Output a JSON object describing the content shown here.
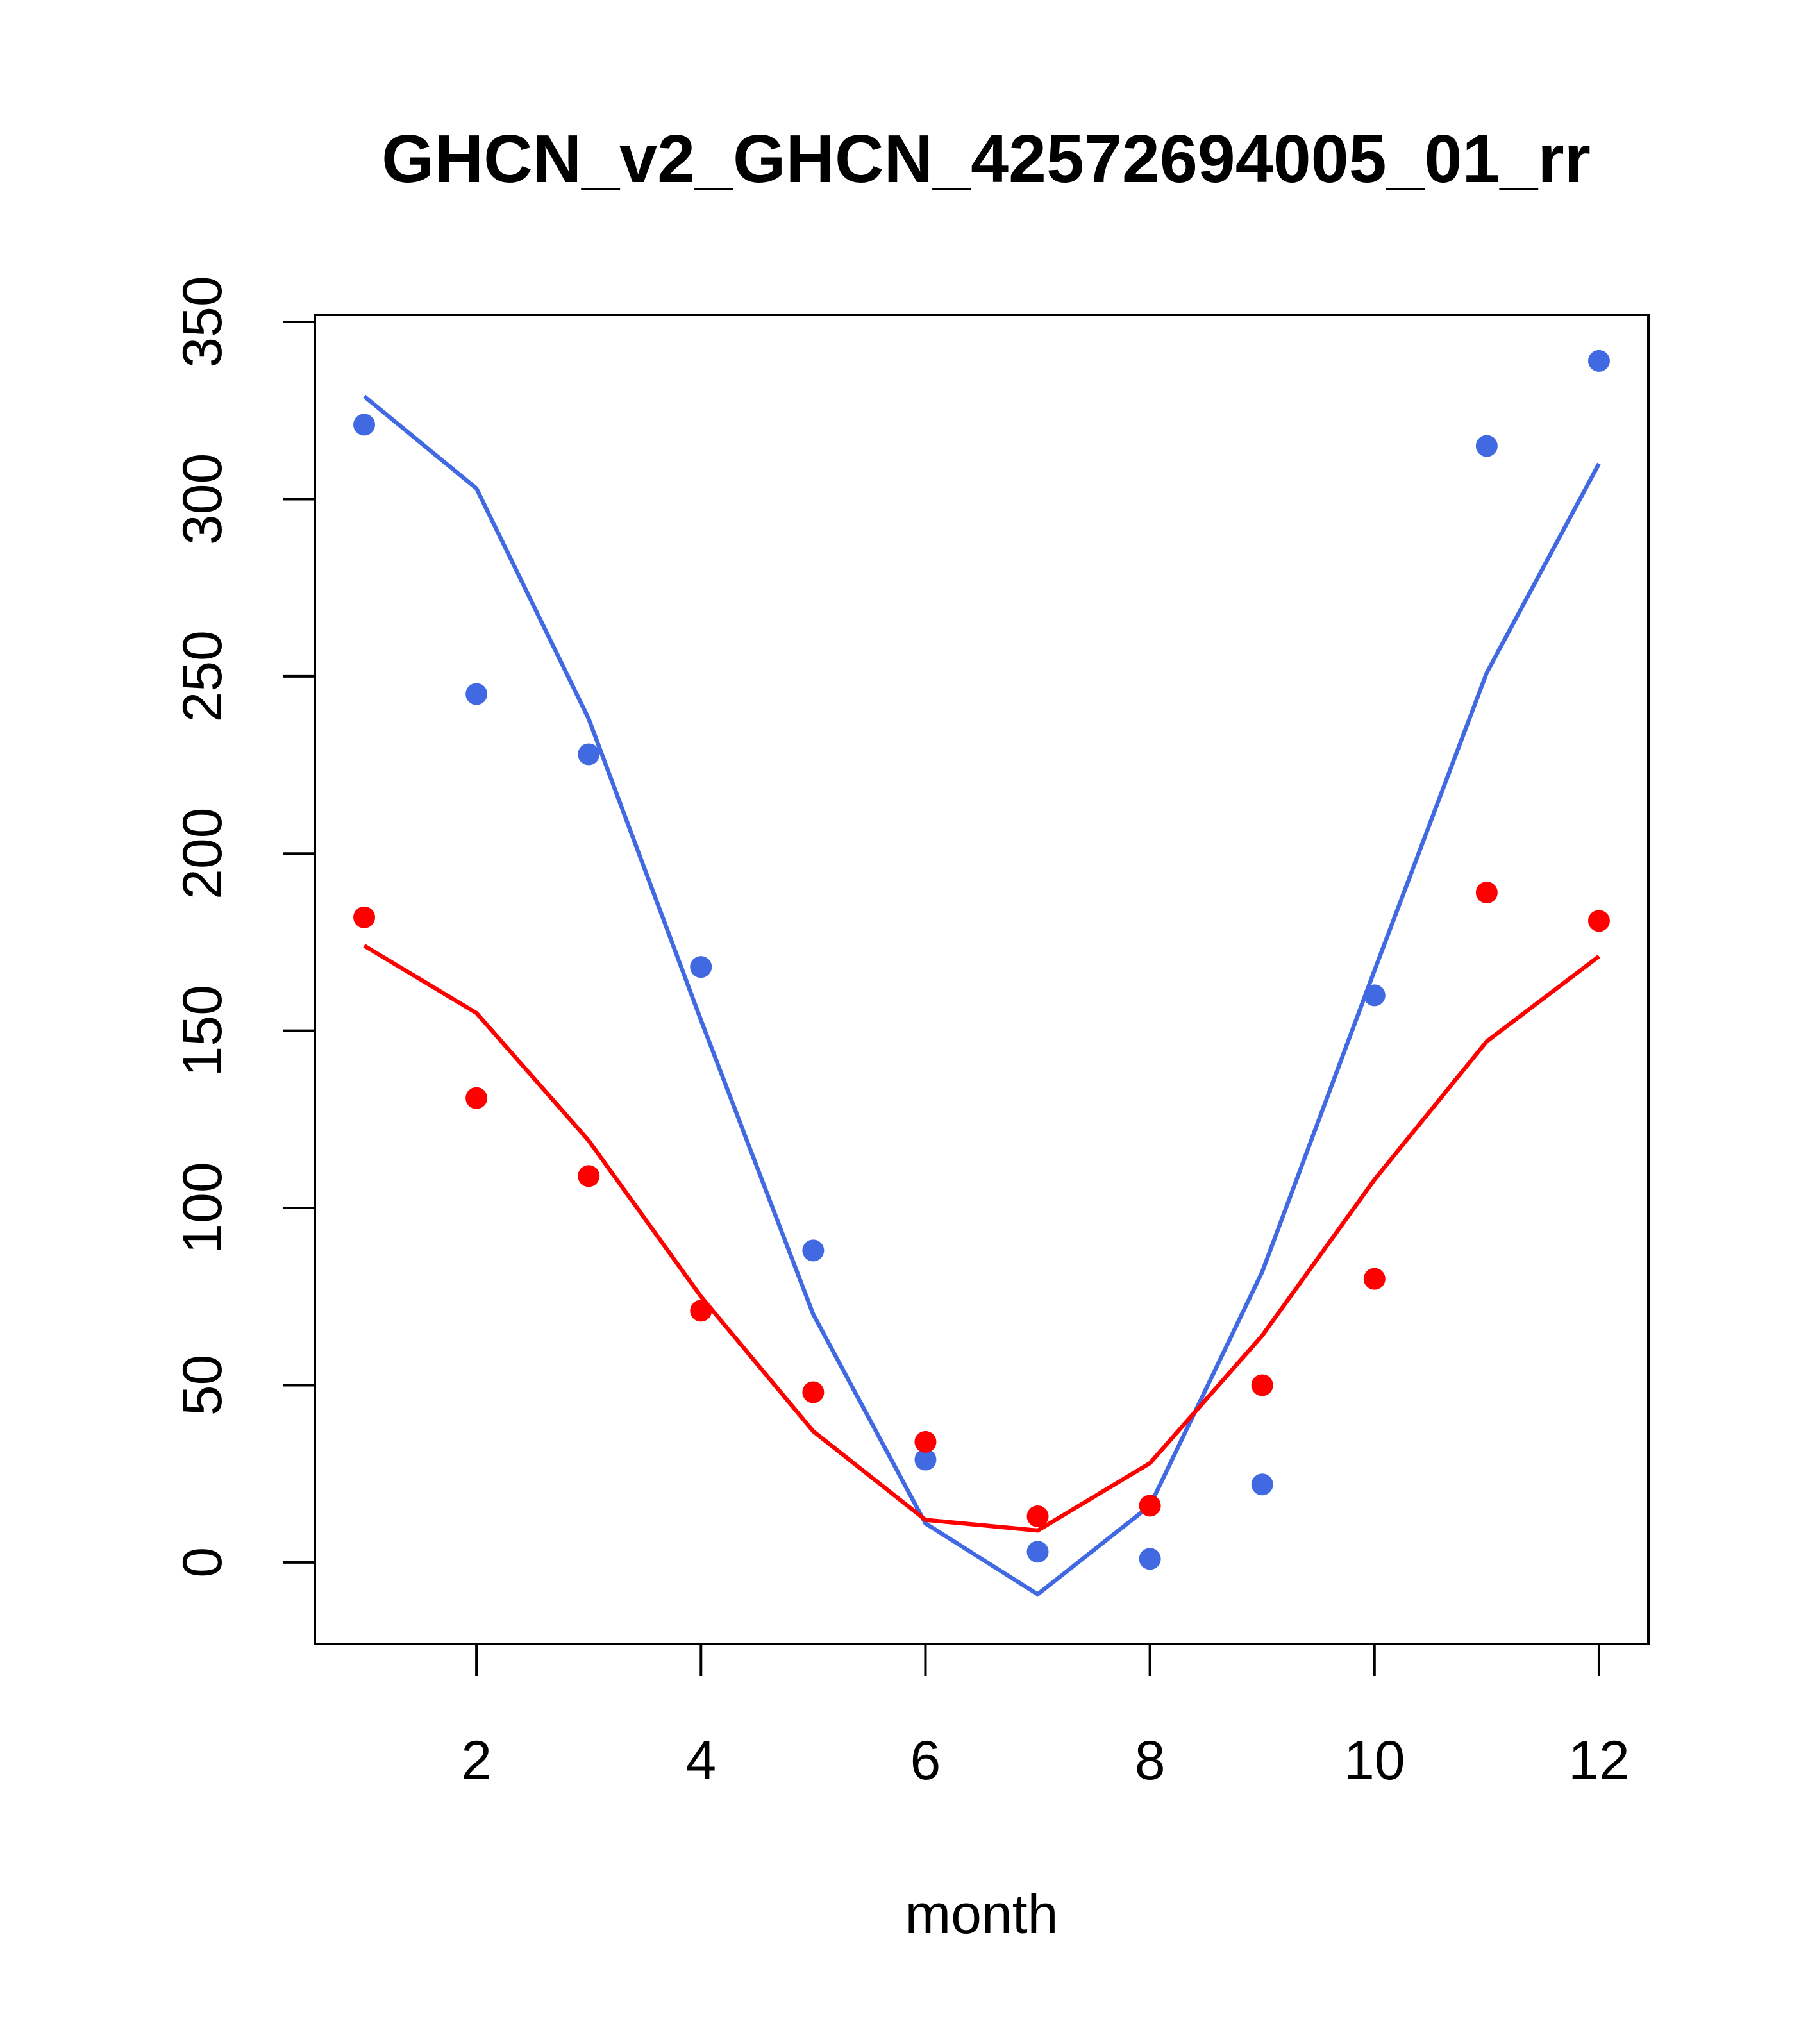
{
  "chart_data": {
    "type": "line",
    "title": "GHCN_v2_GHCN_42572694005_01_rr",
    "xlabel": "month",
    "ylabel": "",
    "xlim": [
      0.56,
      12.44
    ],
    "ylim": [
      -23,
      352
    ],
    "x_ticks": [
      2,
      4,
      6,
      8,
      10,
      12
    ],
    "y_ticks": [
      0,
      50,
      100,
      150,
      200,
      250,
      300,
      350
    ],
    "grid": false,
    "legend": "none",
    "x": [
      1,
      2,
      3,
      4,
      5,
      6,
      7,
      8,
      9,
      10,
      11,
      12
    ],
    "series": [
      {
        "color": "#4169E1",
        "points": [
          321,
          245,
          228,
          168,
          88,
          29,
          3,
          1,
          22,
          160,
          315,
          339
        ],
        "line": [
          329,
          303,
          238,
          153,
          70,
          11,
          -9,
          16,
          82,
          167,
          251,
          310
        ]
      },
      {
        "color": "#FF0000",
        "points": [
          182,
          131,
          109,
          71,
          48,
          34,
          13,
          16,
          50,
          80,
          189,
          181
        ],
        "line": [
          174,
          155,
          119,
          75,
          37,
          12,
          9,
          28,
          64,
          108,
          147,
          171
        ]
      }
    ]
  }
}
